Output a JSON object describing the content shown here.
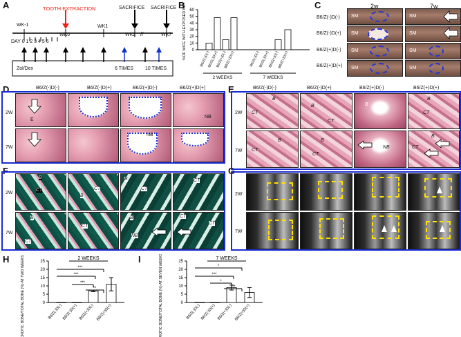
{
  "panels": {
    "A": "A",
    "B": "B",
    "C": "C",
    "D": "D",
    "E": "E",
    "F": "F",
    "G": "G",
    "H": "H",
    "I": "I"
  },
  "panelA": {
    "tooth_extraction": "TOOTH EXTRACTION",
    "sacrifice1": "SACRIFICE",
    "sacrifice2": "SACRIFICE",
    "weeks": [
      "WK-1",
      "WK0",
      "WK1",
      "WK2",
      "WK7"
    ],
    "day_label": "DAY 0 1 2 3 4 5 6",
    "drug": "Zol/Dex",
    "times1": "6 TIMES",
    "times2": "10 TIMES"
  },
  "groups": [
    "B6/Z(-)D(-)",
    "B6/Z(-)D(+)",
    "B6/Z(+)D(-)",
    "B6/Z(+)D(+)"
  ],
  "panelB": {
    "ylabel": "%OF MICE WITH EXPOSED BONE",
    "yticks": [
      "0",
      "10",
      "20",
      "30",
      "40",
      "50",
      "60"
    ],
    "group_labels": [
      "2 WEEKS",
      "7 WEEKS"
    ]
  },
  "panelC": {
    "col1": "2w",
    "col2": "7w",
    "sm": "SM"
  },
  "rows": {
    "w2": "2W",
    "w7": "7W"
  },
  "tissue": {
    "B": "B",
    "CT": "CT",
    "NB": "NB",
    "E": "E"
  },
  "panelH": {
    "ylabel": "NECROTIC BONE/TOTAL BONE (%) AT TWO WEEKS POST EXTRACTION",
    "title": "2 WEEKS",
    "yticks": [
      "0",
      "5",
      "10",
      "15",
      "20",
      "25"
    ],
    "sig": [
      "***",
      "***",
      "***",
      "**"
    ]
  },
  "panelI": {
    "ylabel": "NECROTIC BONE/TOTAL BONE (%) AT SEVEN WEEKS POST EXTRACTION",
    "title": "7 WEEKS",
    "yticks": [
      "0",
      "5",
      "10",
      "15",
      "20",
      "25"
    ],
    "sig": [
      "*",
      "***",
      "*",
      "***"
    ]
  },
  "chart_data": [
    {
      "type": "bar",
      "title": "",
      "ylabel": "%OF MICE WITH EXPOSED BONE",
      "ylim": [
        0,
        60
      ],
      "categories": [
        "B6/Z(-)D(-)",
        "B6/Z(-)D(+)",
        "B6/Z(+)D(-)",
        "B6/Z(+)D(+)",
        "B6/Z(-)D(-)",
        "B6/Z(-)D(+)",
        "B6/Z(+)D(-)",
        "B6/Z(+)D(+)"
      ],
      "groups": [
        "2 WEEKS",
        "7 WEEKS"
      ],
      "values": [
        10,
        48,
        15,
        48,
        0,
        0,
        15,
        30
      ]
    },
    {
      "type": "bar",
      "title": "2 WEEKS",
      "ylabel": "NECROTIC BONE/TOTAL BONE (%) AT TWO WEEKS POST EXTRACTION",
      "ylim": [
        0,
        25
      ],
      "categories": [
        "B6/Z(-)D(-)",
        "B6/Z(-)D(+)",
        "B6/Z(+)D(-)",
        "B6/Z(+)D(+)"
      ],
      "values": [
        0,
        0,
        7,
        11
      ],
      "errors": [
        0,
        0,
        0.5,
        4
      ]
    },
    {
      "type": "bar",
      "title": "7 WEEKS",
      "ylabel": "NECROTIC BONE/TOTAL BONE (%) AT SEVEN WEEKS POST EXTRACTION",
      "ylim": [
        0,
        25
      ],
      "categories": [
        "B6/Z(-)D(-)",
        "B6/Z(-)D(+)",
        "B6/Z(+)D(-)",
        "B6/Z(+)D(+)"
      ],
      "values": [
        0,
        0,
        9,
        6
      ],
      "errors": [
        0,
        0,
        1.5,
        3
      ]
    }
  ]
}
